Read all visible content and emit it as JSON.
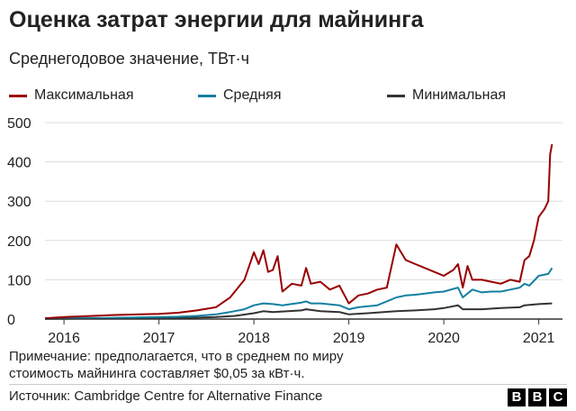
{
  "title": "Оценка затрат энергии для майнинга",
  "subtitle": "Среднегодовое значение, ТВт·ч",
  "note_line1": "Примечание: предполагается, что в среднем по миру",
  "note_line2": "стоимость майнинга составляет $0,05 за кВт·ч.",
  "source": "Источник: Cambridge Centre for Alternative Finance",
  "logo": [
    "B",
    "B",
    "C"
  ],
  "chart_data": {
    "type": "line",
    "x_range": [
      2015.8,
      2021.25
    ],
    "ylim": [
      0,
      500
    ],
    "yticks": [
      0,
      100,
      200,
      300,
      400,
      500
    ],
    "xticks": [
      2016,
      2017,
      2018,
      2019,
      2020,
      2021
    ],
    "grid": "horizontal",
    "legend_position": "top",
    "series": [
      {
        "name": "Максимальная",
        "color": "#990000",
        "points": [
          [
            2015.8,
            2
          ],
          [
            2016.0,
            5
          ],
          [
            2016.3,
            8
          ],
          [
            2016.5,
            10
          ],
          [
            2016.8,
            12
          ],
          [
            2017.0,
            13
          ],
          [
            2017.2,
            16
          ],
          [
            2017.4,
            22
          ],
          [
            2017.6,
            30
          ],
          [
            2017.75,
            55
          ],
          [
            2017.9,
            100
          ],
          [
            2018.0,
            170
          ],
          [
            2018.05,
            140
          ],
          [
            2018.1,
            175
          ],
          [
            2018.15,
            120
          ],
          [
            2018.2,
            125
          ],
          [
            2018.25,
            160
          ],
          [
            2018.3,
            70
          ],
          [
            2018.4,
            90
          ],
          [
            2018.5,
            85
          ],
          [
            2018.55,
            130
          ],
          [
            2018.6,
            90
          ],
          [
            2018.7,
            95
          ],
          [
            2018.8,
            75
          ],
          [
            2018.9,
            85
          ],
          [
            2019.0,
            40
          ],
          [
            2019.1,
            60
          ],
          [
            2019.2,
            65
          ],
          [
            2019.3,
            75
          ],
          [
            2019.4,
            80
          ],
          [
            2019.45,
            135
          ],
          [
            2019.5,
            190
          ],
          [
            2019.55,
            170
          ],
          [
            2019.6,
            150
          ],
          [
            2019.7,
            140
          ],
          [
            2019.8,
            130
          ],
          [
            2019.9,
            120
          ],
          [
            2020.0,
            110
          ],
          [
            2020.1,
            125
          ],
          [
            2020.15,
            140
          ],
          [
            2020.2,
            80
          ],
          [
            2020.25,
            135
          ],
          [
            2020.3,
            100
          ],
          [
            2020.4,
            100
          ],
          [
            2020.5,
            95
          ],
          [
            2020.6,
            90
          ],
          [
            2020.7,
            100
          ],
          [
            2020.8,
            95
          ],
          [
            2020.85,
            150
          ],
          [
            2020.9,
            160
          ],
          [
            2020.95,
            200
          ],
          [
            2021.0,
            260
          ],
          [
            2021.03,
            270
          ],
          [
            2021.06,
            280
          ],
          [
            2021.1,
            300
          ],
          [
            2021.12,
            420
          ],
          [
            2021.14,
            445
          ]
        ]
      },
      {
        "name": "Средняя",
        "color": "#1380A1",
        "points": [
          [
            2015.8,
            1
          ],
          [
            2016.0,
            2
          ],
          [
            2016.5,
            3
          ],
          [
            2017.0,
            5
          ],
          [
            2017.2,
            6
          ],
          [
            2017.4,
            8
          ],
          [
            2017.6,
            12
          ],
          [
            2017.75,
            18
          ],
          [
            2017.9,
            25
          ],
          [
            2018.0,
            35
          ],
          [
            2018.1,
            40
          ],
          [
            2018.2,
            38
          ],
          [
            2018.3,
            35
          ],
          [
            2018.5,
            42
          ],
          [
            2018.55,
            45
          ],
          [
            2018.6,
            40
          ],
          [
            2018.7,
            40
          ],
          [
            2018.9,
            35
          ],
          [
            2019.0,
            25
          ],
          [
            2019.1,
            30
          ],
          [
            2019.3,
            35
          ],
          [
            2019.5,
            55
          ],
          [
            2019.6,
            60
          ],
          [
            2019.7,
            62
          ],
          [
            2019.8,
            65
          ],
          [
            2019.9,
            68
          ],
          [
            2020.0,
            70
          ],
          [
            2020.15,
            80
          ],
          [
            2020.2,
            55
          ],
          [
            2020.3,
            75
          ],
          [
            2020.4,
            68
          ],
          [
            2020.5,
            70
          ],
          [
            2020.6,
            70
          ],
          [
            2020.7,
            75
          ],
          [
            2020.8,
            80
          ],
          [
            2020.85,
            90
          ],
          [
            2020.9,
            85
          ],
          [
            2021.0,
            110
          ],
          [
            2021.1,
            115
          ],
          [
            2021.14,
            130
          ]
        ]
      },
      {
        "name": "Минимальная",
        "color": "#333333",
        "points": [
          [
            2015.8,
            0.5
          ],
          [
            2016.0,
            1
          ],
          [
            2016.5,
            1.5
          ],
          [
            2017.0,
            2
          ],
          [
            2017.3,
            3
          ],
          [
            2017.6,
            5
          ],
          [
            2017.8,
            8
          ],
          [
            2018.0,
            15
          ],
          [
            2018.1,
            20
          ],
          [
            2018.2,
            18
          ],
          [
            2018.5,
            22
          ],
          [
            2018.55,
            25
          ],
          [
            2018.7,
            20
          ],
          [
            2018.9,
            18
          ],
          [
            2019.0,
            12
          ],
          [
            2019.2,
            15
          ],
          [
            2019.5,
            20
          ],
          [
            2019.7,
            22
          ],
          [
            2019.9,
            25
          ],
          [
            2020.0,
            28
          ],
          [
            2020.15,
            35
          ],
          [
            2020.2,
            25
          ],
          [
            2020.4,
            25
          ],
          [
            2020.6,
            28
          ],
          [
            2020.8,
            30
          ],
          [
            2020.85,
            35
          ],
          [
            2021.0,
            38
          ],
          [
            2021.14,
            40
          ]
        ]
      }
    ]
  }
}
